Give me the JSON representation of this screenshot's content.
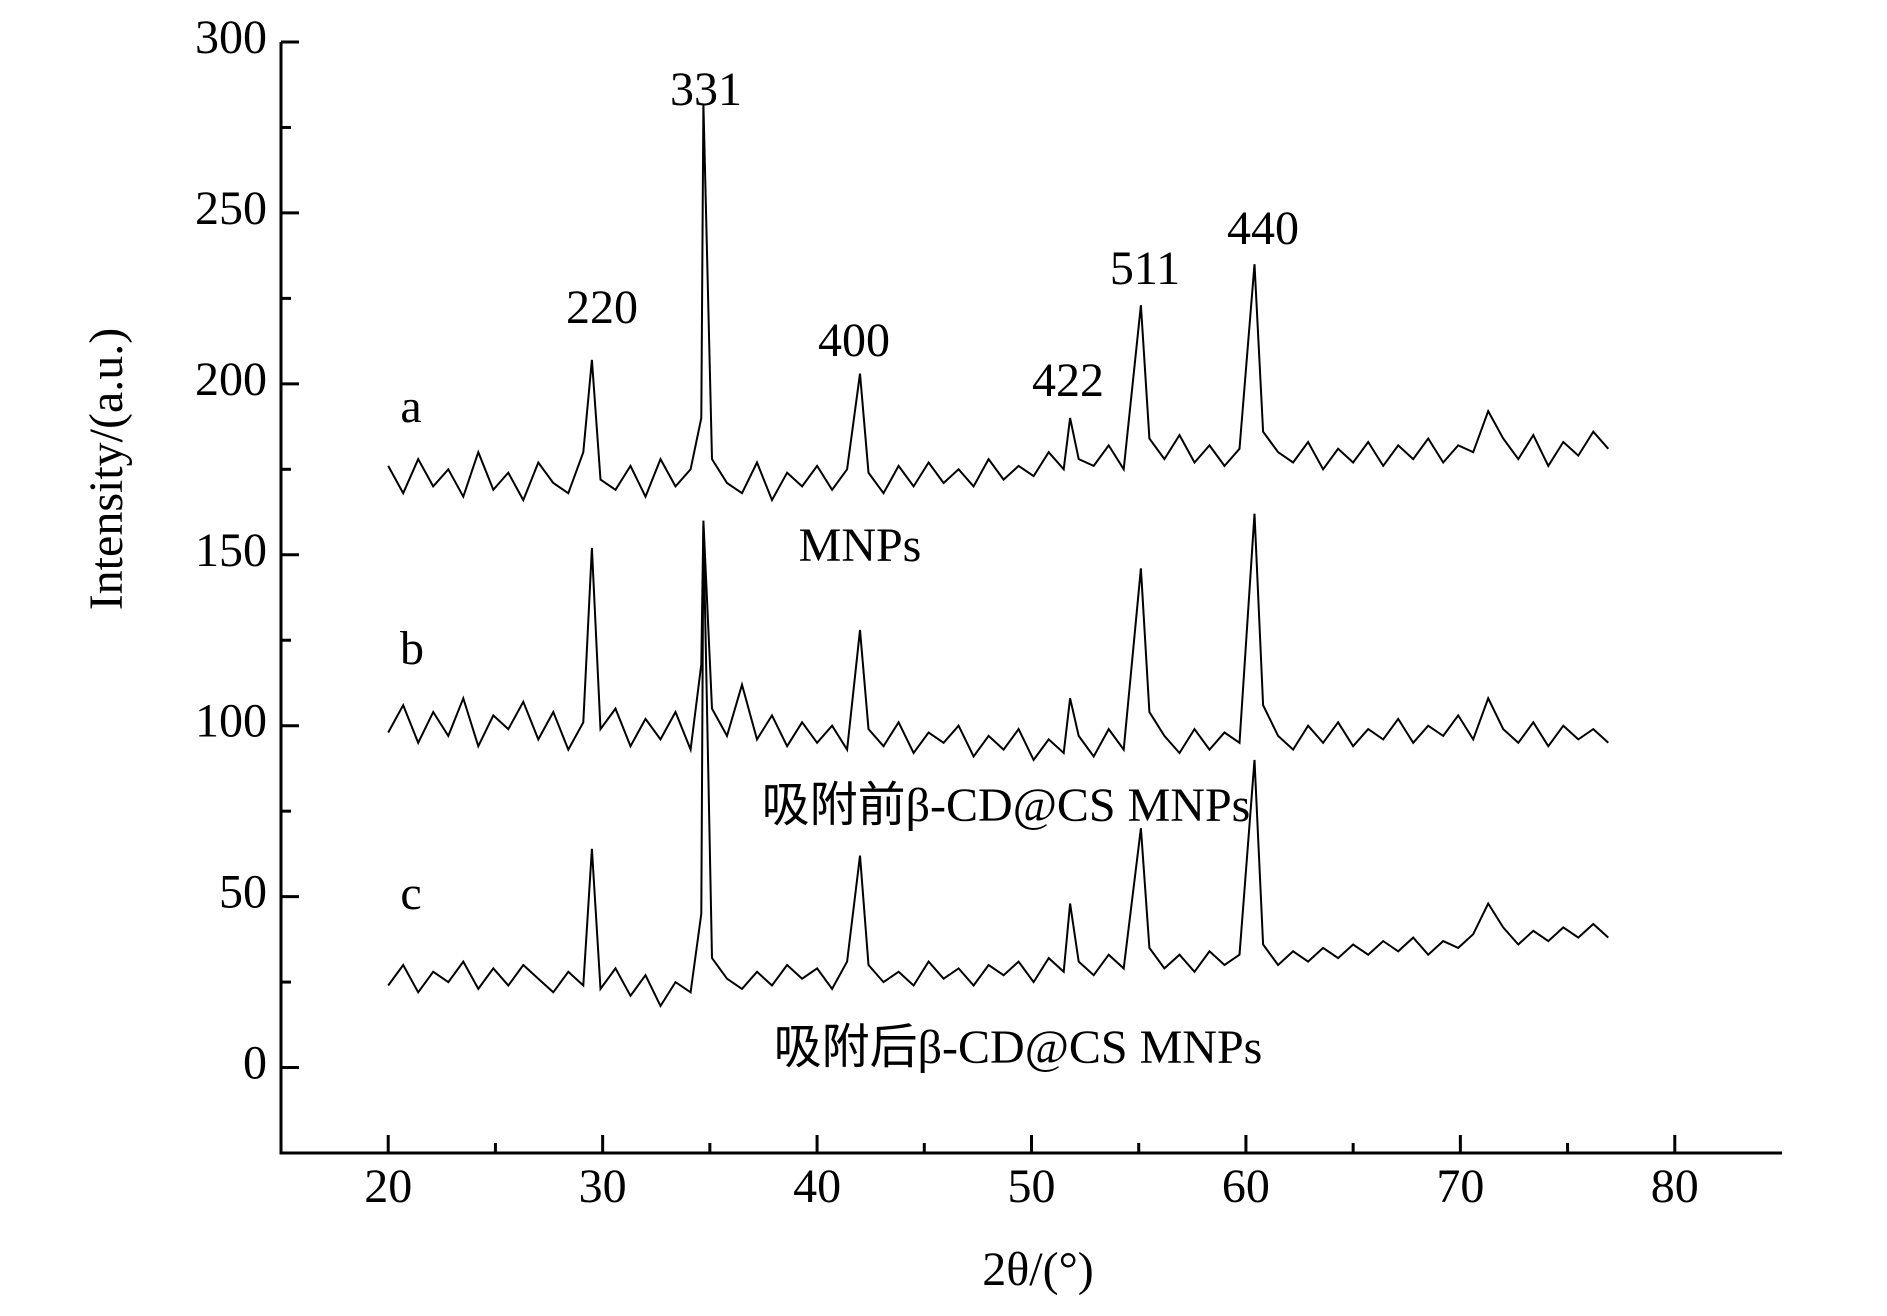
{
  "chart_data": {
    "type": "line",
    "x_label": "2θ/(°)",
    "y_label": "Intensity/(a.u.)",
    "xlim": [
      15,
      85
    ],
    "xticks": [
      20,
      30,
      40,
      50,
      60,
      70,
      80
    ],
    "ylim": [
      -25,
      300
    ],
    "yticks": [
      0,
      50,
      100,
      150,
      200,
      250,
      300
    ],
    "x": [
      20,
      20.7,
      21.4,
      22.1,
      22.8,
      23.5,
      24.2,
      24.9,
      25.6,
      26.3,
      27,
      27.7,
      28.4,
      29.1,
      29.5,
      29.9,
      30.6,
      31.3,
      32,
      32.7,
      33.4,
      34.1,
      34.6,
      34.7,
      35.1,
      35.8,
      36.5,
      37.2,
      37.9,
      38.6,
      39.3,
      40,
      40.7,
      41.4,
      42,
      42.4,
      43.1,
      43.8,
      44.5,
      45.2,
      45.9,
      46.6,
      47.3,
      48,
      48.7,
      49.4,
      50.1,
      50.8,
      51.5,
      51.8,
      52.2,
      52.9,
      53.6,
      54.3,
      55.1,
      55.5,
      56.2,
      56.9,
      57.6,
      58.3,
      59,
      59.7,
      60.4,
      60.8,
      61.5,
      62.2,
      62.9,
      63.6,
      64.3,
      65,
      65.7,
      66.4,
      67.1,
      67.8,
      68.5,
      69.2,
      69.9,
      70.6,
      71.3,
      72,
      72.7,
      73.4,
      74.1,
      74.8,
      75.5,
      76.2,
      76.9
    ],
    "series": [
      {
        "color": "#000000",
        "values": [
          176,
          168,
          178,
          170,
          175,
          167,
          180,
          169,
          174,
          166,
          177,
          171,
          168,
          180,
          207,
          172,
          169,
          176,
          167,
          178,
          170,
          175,
          190,
          282,
          178,
          171,
          168,
          177,
          166,
          174,
          170,
          176,
          169,
          175,
          203,
          174,
          168,
          176,
          170,
          177,
          171,
          175,
          170,
          178,
          172,
          176,
          173,
          180,
          175,
          190,
          178,
          176,
          182,
          175,
          223,
          184,
          178,
          185,
          177,
          182,
          176,
          181,
          235,
          186,
          180,
          177,
          183,
          175,
          181,
          177,
          183,
          176,
          182,
          178,
          184,
          177,
          182,
          180,
          192,
          184,
          178,
          185,
          176,
          183,
          179,
          186,
          181
        ]
      },
      {
        "color": "#000000",
        "values": [
          98,
          106,
          95,
          104,
          97,
          108,
          94,
          103,
          99,
          107,
          96,
          104,
          93,
          101,
          152,
          99,
          105,
          94,
          102,
          96,
          104,
          93,
          118,
          160,
          105,
          97,
          112,
          96,
          103,
          94,
          101,
          95,
          100,
          93,
          128,
          99,
          94,
          101,
          92,
          98,
          95,
          100,
          91,
          97,
          93,
          99,
          90,
          96,
          92,
          108,
          97,
          91,
          99,
          93,
          146,
          104,
          97,
          92,
          99,
          93,
          98,
          95,
          162,
          106,
          97,
          93,
          100,
          95,
          101,
          94,
          99,
          96,
          102,
          95,
          100,
          97,
          103,
          96,
          108,
          99,
          95,
          101,
          94,
          100,
          96,
          99,
          95
        ]
      },
      {
        "color": "#000000",
        "values": [
          24,
          30,
          22,
          28,
          25,
          31,
          23,
          29,
          24,
          30,
          26,
          22,
          28,
          24,
          64,
          23,
          29,
          21,
          27,
          18,
          25,
          22,
          45,
          158,
          32,
          26,
          23,
          28,
          24,
          30,
          26,
          29,
          23,
          31,
          62,
          30,
          25,
          28,
          24,
          31,
          26,
          29,
          24,
          30,
          27,
          31,
          25,
          32,
          28,
          48,
          31,
          27,
          33,
          29,
          70,
          35,
          29,
          33,
          28,
          34,
          30,
          33,
          90,
          36,
          30,
          34,
          31,
          35,
          32,
          36,
          33,
          37,
          34,
          38,
          33,
          37,
          35,
          39,
          48,
          41,
          36,
          40,
          37,
          41,
          38,
          42,
          38
        ]
      }
    ],
    "annotations": [
      "a",
      "b",
      "c",
      "MNPs",
      "吸附前β-CD@CS MNPs",
      "吸附后β-CD@CS MNPs",
      "220",
      "331",
      "400",
      "422",
      "511",
      "440"
    ]
  }
}
